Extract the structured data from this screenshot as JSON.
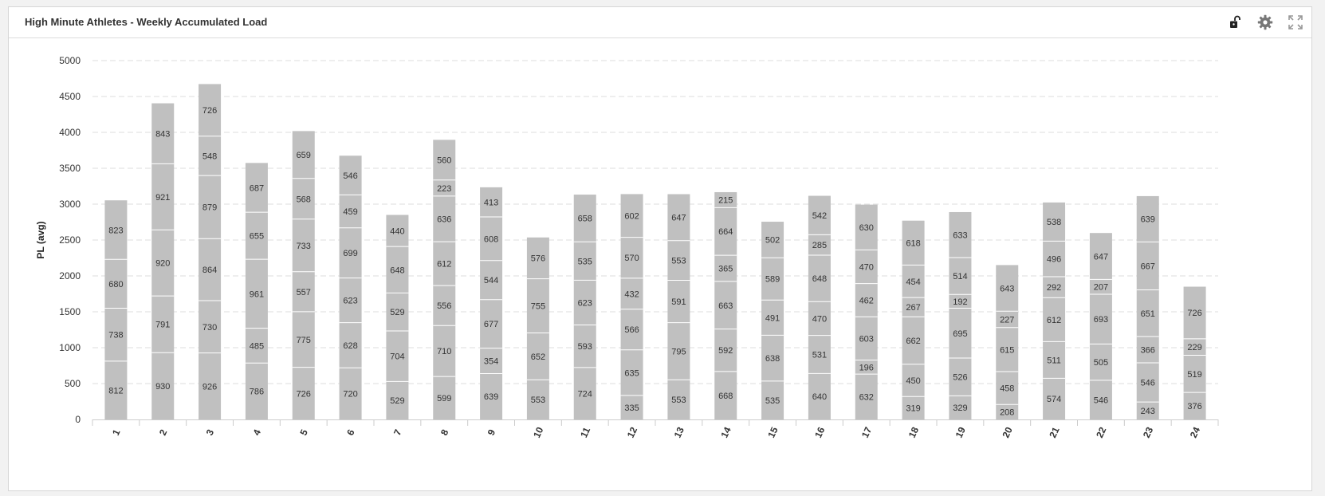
{
  "panel": {
    "title": "High Minute Athletes - Weekly Accumulated Load",
    "tools": [
      {
        "icon": "unlock-icon",
        "name": "unlock-button"
      },
      {
        "icon": "gear-icon",
        "name": "settings-button"
      },
      {
        "icon": "fullscreen-icon",
        "name": "fullscreen-button"
      }
    ]
  },
  "colors": {
    "bar": "#c0c0c0",
    "segment_border": "#ffffff",
    "grid": "#dddddd",
    "text": "#333333"
  },
  "chart_data": {
    "type": "bar",
    "stacked": true,
    "title": "",
    "xlabel": "",
    "ylabel": "PL (avg)",
    "ylim": [
      0,
      5000
    ],
    "yticks": [
      0,
      500,
      1000,
      1500,
      2000,
      2500,
      3000,
      3500,
      4000,
      4500,
      5000
    ],
    "grid": true,
    "legend": "none",
    "categories": [
      "1",
      "2",
      "3",
      "4",
      "5",
      "6",
      "7",
      "8",
      "9",
      "10",
      "11",
      "12",
      "13",
      "14",
      "15",
      "16",
      "17",
      "18",
      "19",
      "20",
      "21",
      "22",
      "23",
      "24"
    ],
    "stacks": [
      [
        812,
        738,
        680,
        823
      ],
      [
        930,
        791,
        920,
        921,
        843
      ],
      [
        926,
        730,
        864,
        879,
        548,
        726
      ],
      [
        786,
        485,
        961,
        655,
        687
      ],
      [
        726,
        775,
        557,
        733,
        568,
        659
      ],
      [
        720,
        628,
        623,
        699,
        459,
        546
      ],
      [
        529,
        704,
        529,
        648,
        440
      ],
      [
        599,
        710,
        556,
        612,
        636,
        223,
        560
      ],
      [
        639,
        354,
        677,
        544,
        608,
        413
      ],
      [
        553,
        652,
        755,
        576
      ],
      [
        724,
        593,
        623,
        535,
        658
      ],
      [
        335,
        635,
        566,
        432,
        570,
        602
      ],
      [
        553,
        795,
        591,
        553,
        647
      ],
      [
        668,
        592,
        663,
        365,
        664,
        215
      ],
      [
        535,
        638,
        491,
        589,
        502
      ],
      [
        640,
        531,
        470,
        648,
        285,
        542
      ],
      [
        632,
        196,
        603,
        462,
        470,
        630
      ],
      [
        319,
        450,
        662,
        267,
        454,
        618
      ],
      [
        329,
        526,
        695,
        192,
        514,
        633
      ],
      [
        208,
        458,
        615,
        227,
        643
      ],
      [
        574,
        511,
        612,
        292,
        496,
        538
      ],
      [
        546,
        505,
        693,
        207,
        647
      ],
      [
        243,
        546,
        366,
        651,
        667,
        639
      ],
      [
        376,
        519,
        229,
        726
      ]
    ]
  }
}
